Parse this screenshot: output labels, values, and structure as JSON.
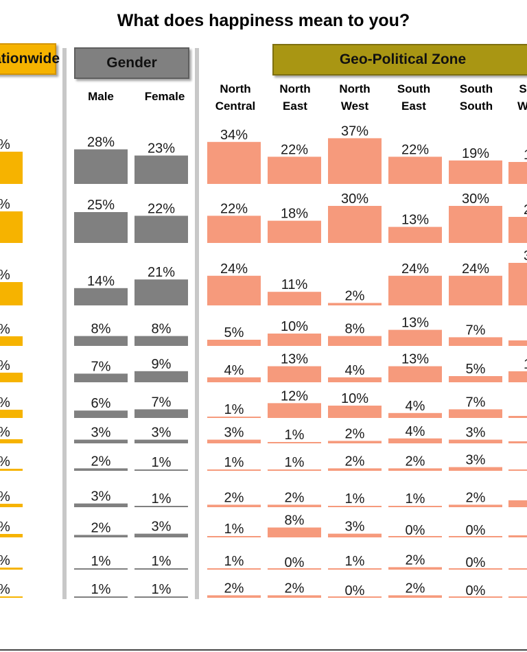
{
  "title": "What does happiness mean to you?",
  "headers": {
    "nationwide": "Nationwide",
    "gender": "Gender",
    "zone": "Geo-Political Zone"
  },
  "colors": {
    "nationwide": "#f6b300",
    "gender": "#808080",
    "zone": "#f69a7c"
  },
  "chart_data": {
    "type": "bar",
    "title": "What does happiness mean to you?",
    "groups": [
      "Nationwide",
      "Gender",
      "Geo-Political Zone"
    ],
    "categories": [
      "Male",
      "Female",
      "North Central",
      "North East",
      "North West",
      "South East",
      "South South",
      "South West"
    ],
    "category_lines": [
      [
        "Male"
      ],
      [
        "Female"
      ],
      [
        "North",
        "Central"
      ],
      [
        "North",
        "East"
      ],
      [
        "North",
        "West"
      ],
      [
        "South",
        "East"
      ],
      [
        "South",
        "South"
      ],
      [
        "S",
        "W"
      ]
    ],
    "series": [
      {
        "name": "Gender",
        "categories": [
          "Male",
          "Female"
        ],
        "values": [
          [
            28,
            23
          ],
          [
            25,
            22
          ],
          [
            14,
            21
          ],
          [
            8,
            8
          ],
          [
            7,
            9
          ],
          [
            6,
            7
          ],
          [
            3,
            3
          ],
          [
            2,
            1
          ],
          [
            3,
            1
          ],
          [
            2,
            3
          ],
          [
            1,
            1
          ],
          [
            1,
            1
          ]
        ]
      },
      {
        "name": "Geo-Political Zone",
        "categories": [
          "North Central",
          "North East",
          "North West",
          "South East",
          "South South"
        ],
        "values": [
          [
            34,
            22,
            37,
            22,
            19
          ],
          [
            22,
            18,
            30,
            13,
            30
          ],
          [
            24,
            11,
            2,
            24,
            24
          ],
          [
            5,
            10,
            8,
            13,
            7
          ],
          [
            4,
            13,
            4,
            13,
            5
          ],
          [
            1,
            12,
            10,
            4,
            7
          ],
          [
            3,
            1,
            2,
            4,
            3
          ],
          [
            1,
            1,
            2,
            2,
            3
          ],
          [
            2,
            2,
            1,
            1,
            2
          ],
          [
            1,
            8,
            3,
            0,
            0
          ],
          [
            1,
            0,
            1,
            2,
            0
          ],
          [
            2,
            2,
            0,
            2,
            0
          ]
        ]
      }
    ],
    "visible_labels": {
      "nationwide": [
        "%",
        "%",
        "%",
        "%",
        "%",
        "%",
        "%",
        "%",
        "%",
        "%",
        "%",
        "%"
      ],
      "south_west": [
        "1",
        "2",
        "3",
        "",
        "1",
        "",
        "",
        "",
        "",
        "",
        "",
        ""
      ]
    }
  }
}
